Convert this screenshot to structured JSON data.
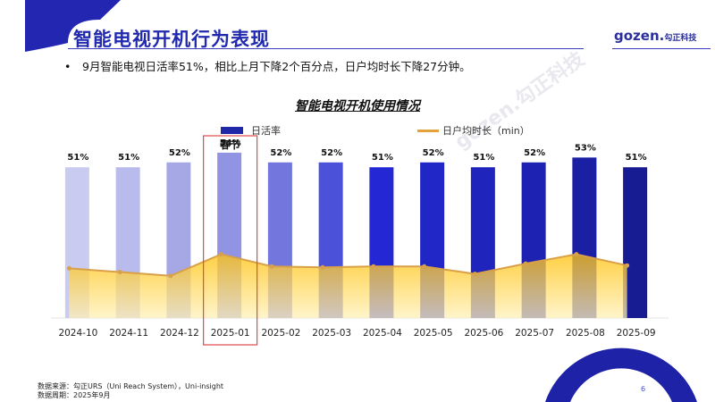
{
  "header": {
    "title": "智能电视开机行为表现",
    "logo_text": "gozen.",
    "logo_cn": "勾正科技"
  },
  "summary": {
    "bullet": "9月智能电视日活率51%，相比上月下降2个百分点，日户均时长下降27分钟。"
  },
  "watermark": "gozen.勾正科技",
  "colors": {
    "accent": "#2029b0",
    "line": "#d9a04a",
    "area": "#ffc20e",
    "highlight_box": "#e04a4a"
  },
  "chart_data": {
    "type": "bar",
    "title": "智能电视开机使用情况",
    "xlabel": "",
    "ylabel": "",
    "legend_position": "top",
    "categories": [
      "2024-10",
      "2024-11",
      "2024-12",
      "2025-01",
      "2025-02",
      "2025-03",
      "2025-04",
      "2025-05",
      "2025-06",
      "2025-07",
      "2025-08",
      "2025-09"
    ],
    "series": [
      {
        "name": "日活率",
        "type": "bar",
        "unit": "%",
        "values": [
          51,
          51,
          52,
          54,
          52,
          52,
          51,
          52,
          51,
          52,
          53,
          51
        ],
        "labels": [
          "51%",
          "51%",
          "52%",
          "54%",
          "52%",
          "52%",
          "51%",
          "52%",
          "51%",
          "52%",
          "53%",
          "51%"
        ],
        "colors": [
          "#c9cbf0",
          "#b9bbec",
          "#a6a8e6",
          "#9194e2",
          "#7276dd",
          "#4b51d8",
          "#2328d4",
          "#2126c6",
          "#1f24bd",
          "#1d22b2",
          "#1a1fa4",
          "#171c92"
        ]
      },
      {
        "name": "日户均时长（min）",
        "type": "area-line",
        "unit": "min",
        "values_relative": [
          0.53,
          0.49,
          0.45,
          0.68,
          0.55,
          0.54,
          0.55,
          0.55,
          0.47,
          0.58,
          0.68,
          0.56
        ],
        "note": "no value labels shown; relative heights estimated"
      }
    ],
    "annotations": [
      {
        "category": "2025-01",
        "text": "春节",
        "style": "red-box"
      }
    ],
    "ylim": [
      0,
      60
    ],
    "grid": false
  },
  "footer": {
    "source": "数据来源：勾正URS（Uni Reach System），Uni-insight",
    "period": "数据周期：2025年9月",
    "page": "6"
  }
}
